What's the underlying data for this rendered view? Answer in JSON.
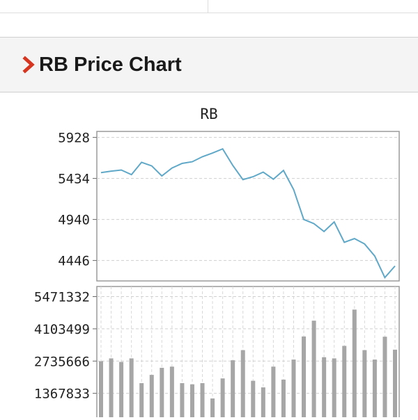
{
  "section": {
    "title": "RB Price Chart",
    "chevron_color": "#d6351f"
  },
  "chart_data": [
    {
      "type": "line",
      "title": "RB",
      "xlabel": "",
      "ylabel": "",
      "y_ticks": [
        4446,
        4940,
        5434,
        5928
      ],
      "y_tick_labels": [
        "5928",
        "5434",
        "4940",
        "4446"
      ],
      "ylim": [
        4200,
        6000
      ],
      "grid": true,
      "line_color": "#5fa8c8",
      "values": [
        5504,
        5522,
        5535,
        5480,
        5628,
        5585,
        5464,
        5560,
        5615,
        5635,
        5695,
        5740,
        5790,
        5590,
        5420,
        5455,
        5510,
        5425,
        5530,
        5300,
        4940,
        4890,
        4795,
        4910,
        4665,
        4710,
        4645,
        4500,
        4240,
        4380
      ]
    },
    {
      "type": "bar",
      "y_ticks": [
        1367833,
        2735666,
        4103499,
        5471332
      ],
      "y_tick_labels": [
        "5471332",
        "4103499",
        "2735666",
        "1367833"
      ],
      "ylim": [
        0,
        5900000
      ],
      "grid": true,
      "bar_color": "#a6a6a6",
      "values": [
        2730000,
        2850000,
        2700000,
        2850000,
        1800000,
        2150000,
        2450000,
        2500000,
        1800000,
        1750000,
        1800000,
        1150000,
        2000000,
        2770000,
        3200000,
        1900000,
        1620000,
        2500000,
        1950000,
        2800000,
        3780000,
        4450000,
        2900000,
        2850000,
        3380000,
        4920000,
        3200000,
        2800000,
        3770000,
        3220000
      ]
    }
  ]
}
